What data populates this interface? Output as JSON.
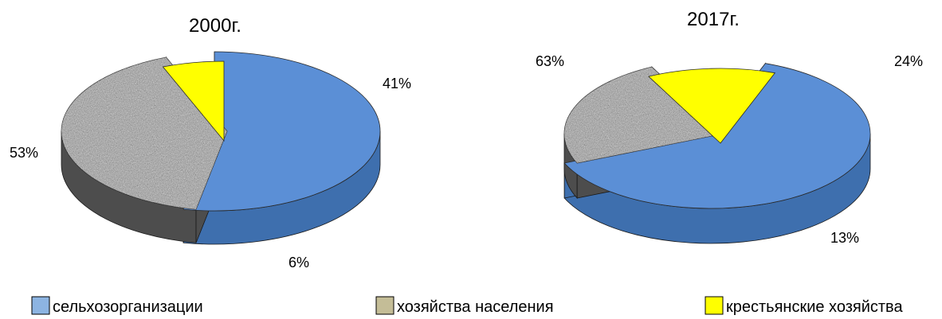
{
  "chart_data": [
    {
      "type": "pie",
      "title": "2000г.",
      "slices": [
        {
          "series": "сельхозорганизации",
          "value": 53,
          "label": "53%"
        },
        {
          "series": "хозяйства населения",
          "value": 41,
          "label": "41%"
        },
        {
          "series": "крестьянские хозяйства",
          "value": 6,
          "label": "6%"
        }
      ]
    },
    {
      "type": "pie",
      "title": "2017г.",
      "slices": [
        {
          "series": "сельхозорганизации",
          "value": 63,
          "label": "63%"
        },
        {
          "series": "хозяйства населения",
          "value": 24,
          "label": "24%"
        },
        {
          "series": "крестьянские хозяйства",
          "value": 13,
          "label": "13%"
        }
      ]
    }
  ],
  "legend": {
    "placement": "bottom",
    "items": [
      {
        "label": "сельхозорганизации",
        "color": "#8db4e2"
      },
      {
        "label": "хозяйства населения",
        "color": "#c4bd97"
      },
      {
        "label": "крестьянские хозяйства",
        "color": "#ffff00"
      }
    ]
  },
  "series_colors": {
    "сельхозорганизации": {
      "top": "#5b8fd6",
      "side": "#3e6fae"
    },
    "хозяйства населения": {
      "top": "#a0a0a0",
      "side": "#4d4d4d"
    },
    "крестьянские хозяйства": {
      "top": "#ffff00",
      "side": "#8a8a00"
    }
  }
}
